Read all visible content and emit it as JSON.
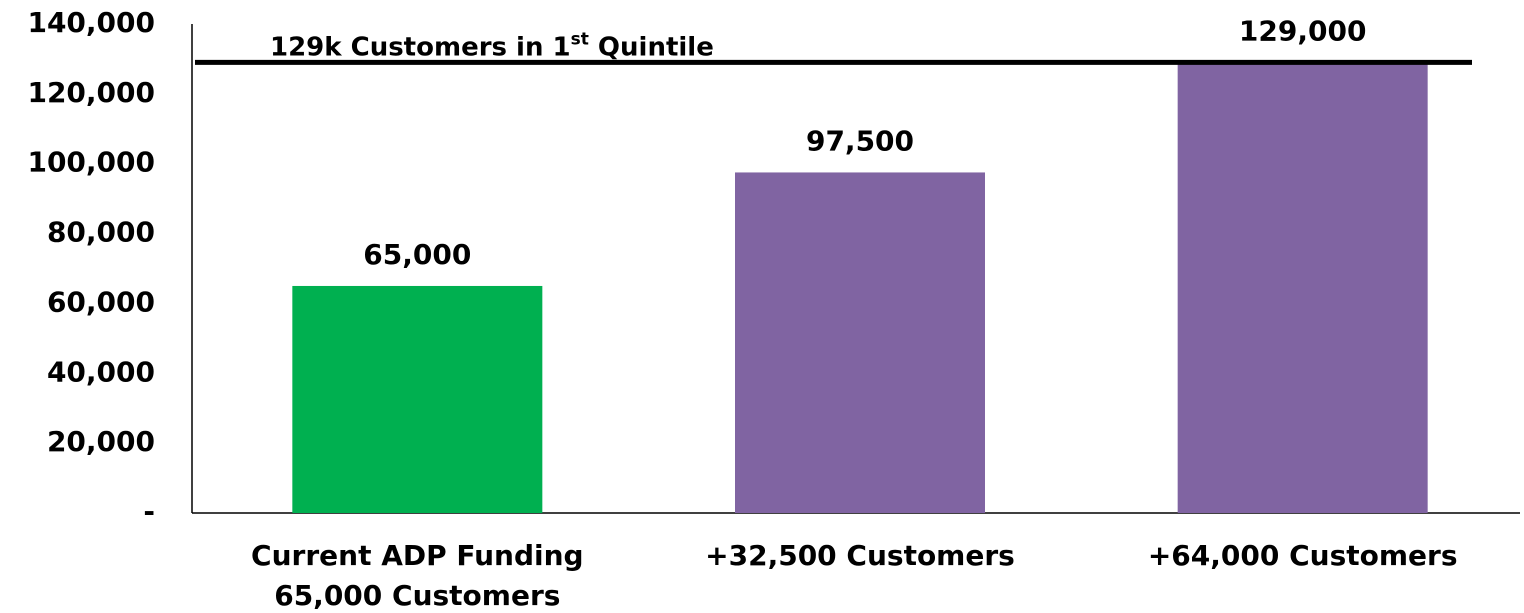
{
  "chart_data": {
    "type": "bar",
    "categories": [
      [
        "Current ADP Funding",
        "65,000 Customers"
      ],
      [
        "+32,500 Customers"
      ],
      [
        "+64,000 Customers"
      ]
    ],
    "values": [
      65000,
      97500,
      129000
    ],
    "value_labels": [
      "65,000",
      "97,500",
      "129,000"
    ],
    "colors": [
      "#00b050",
      "#8064a2",
      "#8064a2"
    ],
    "ylim": [
      0,
      140000
    ],
    "yticks": [
      {
        "value": 0,
        "label": "-"
      },
      {
        "value": 20000,
        "label": "20,000"
      },
      {
        "value": 40000,
        "label": "40,000"
      },
      {
        "value": 60000,
        "label": "60,000"
      },
      {
        "value": 80000,
        "label": "80,000"
      },
      {
        "value": 100000,
        "label": "100,000"
      },
      {
        "value": 120000,
        "label": "120,000"
      },
      {
        "value": 140000,
        "label": "140,000"
      }
    ],
    "reference_line": {
      "value": 129000,
      "text": "129k Customers in 1",
      "superscript": "st",
      "text_end": " Quintile"
    }
  }
}
